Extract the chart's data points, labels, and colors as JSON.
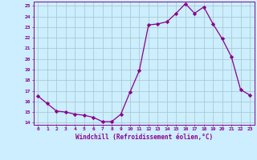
{
  "x": [
    0,
    1,
    2,
    3,
    4,
    5,
    6,
    7,
    8,
    9,
    10,
    11,
    12,
    13,
    14,
    15,
    16,
    17,
    18,
    19,
    20,
    21,
    22,
    23
  ],
  "y": [
    16.5,
    15.8,
    15.1,
    15.0,
    14.8,
    14.7,
    14.5,
    14.1,
    14.1,
    14.8,
    16.9,
    18.9,
    23.2,
    23.3,
    23.5,
    24.3,
    25.2,
    24.3,
    24.9,
    23.3,
    21.9,
    20.2,
    17.1,
    16.6
  ],
  "line_color": "#8B008B",
  "marker": "D",
  "marker_size": 2.2,
  "bg_color": "#cceeff",
  "grid_color": "#aacccc",
  "xlabel": "Windchill (Refroidissement éolien,°C)",
  "xlabel_color": "#8B008B",
  "tick_color": "#8B008B",
  "ylim": [
    13.8,
    25.4
  ],
  "yticks": [
    14,
    15,
    16,
    17,
    18,
    19,
    20,
    21,
    22,
    23,
    24,
    25
  ],
  "xticks": [
    0,
    1,
    2,
    3,
    4,
    5,
    6,
    7,
    8,
    9,
    10,
    11,
    12,
    13,
    14,
    15,
    16,
    17,
    18,
    19,
    20,
    21,
    22,
    23
  ]
}
